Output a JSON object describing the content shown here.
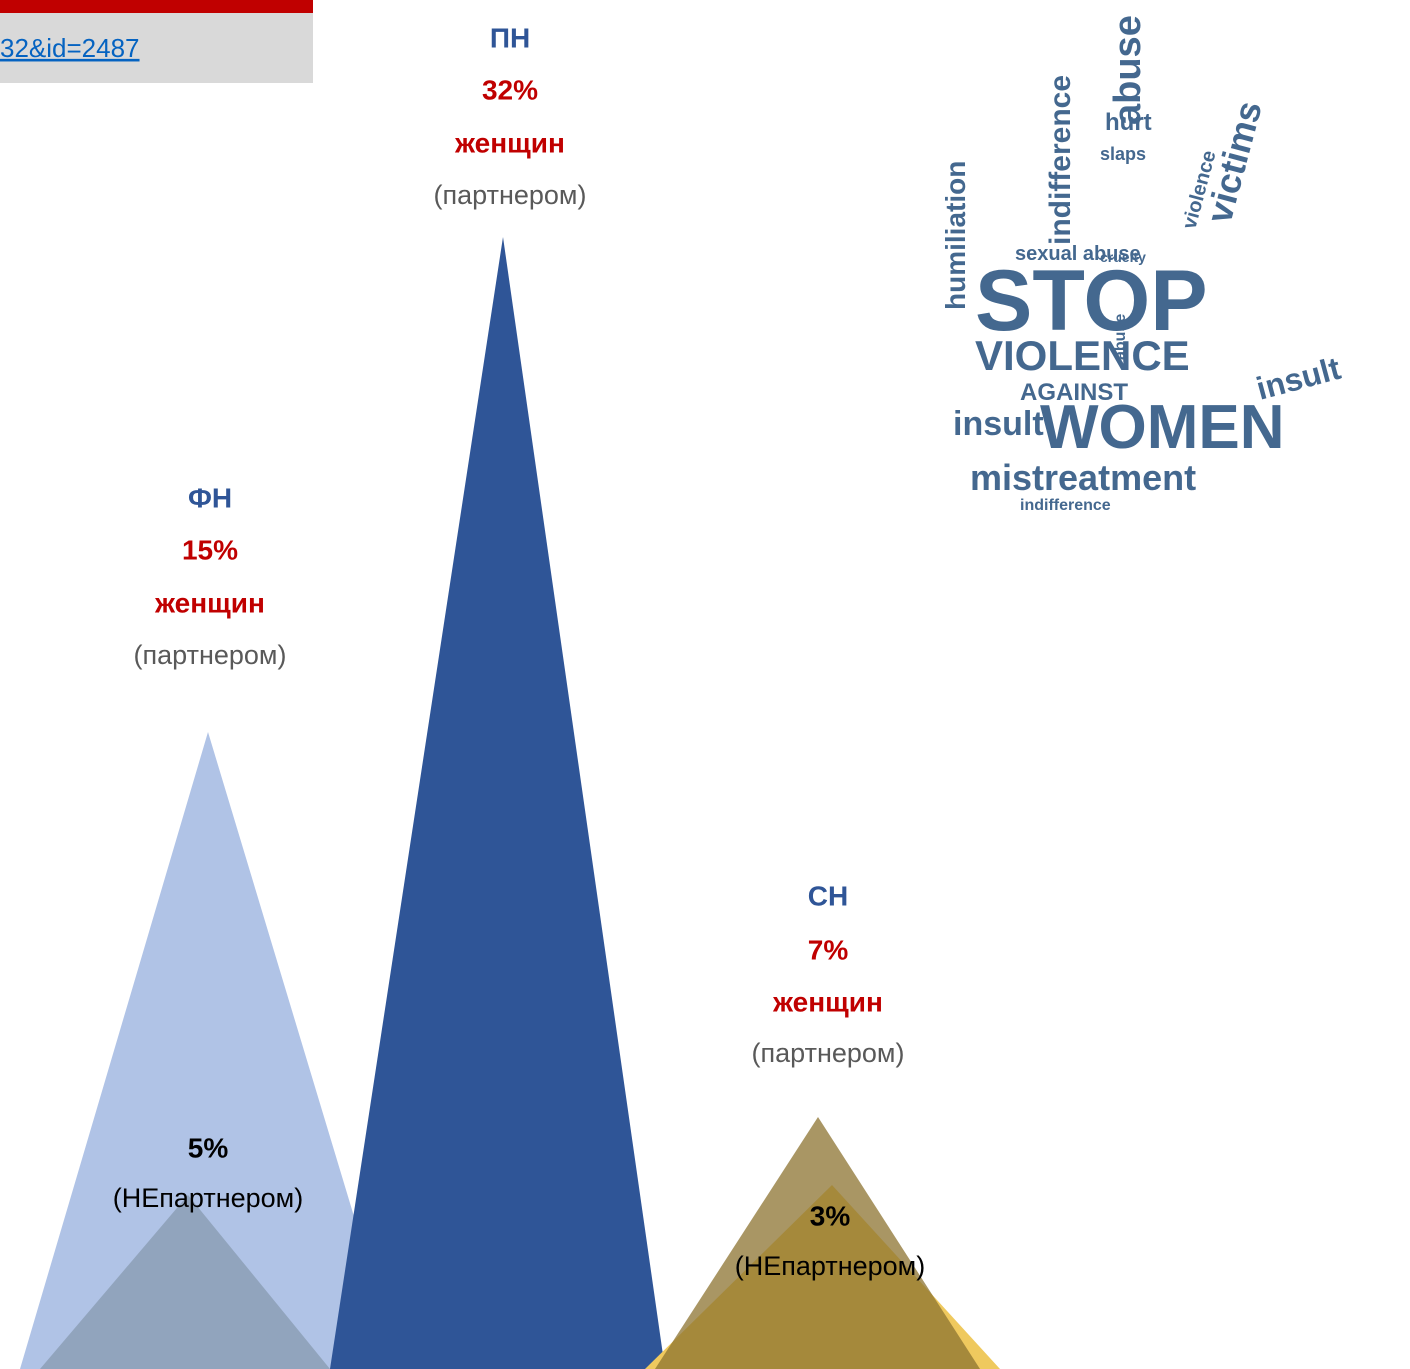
{
  "link": {
    "text": "32&id=2487"
  },
  "groups": [
    {
      "code": "ПН",
      "percent": "32%",
      "who": "женщин",
      "by": "(партнером)"
    },
    {
      "code": "ФН",
      "percent": "15%",
      "who": "женщин",
      "by": "(партнером)"
    },
    {
      "code": "СН",
      "percent": "7%",
      "who": "женщин",
      "by": "(партнером)"
    }
  ],
  "sub": [
    {
      "percent": "5%",
      "by": "(НЕпартнером)"
    },
    {
      "percent": "3%",
      "by": "(НЕпартнером)"
    }
  ],
  "image_words": [
    "STOP",
    "VIOLENCE",
    "AGAINST",
    "WOMEN",
    "mistreatment",
    "insult",
    "insult",
    "abuse",
    "victims",
    "humiliation",
    "indifference",
    "hurt",
    "sexual abuse",
    "abuse",
    "cruelty",
    "slaps",
    "violence",
    "indifference"
  ]
}
